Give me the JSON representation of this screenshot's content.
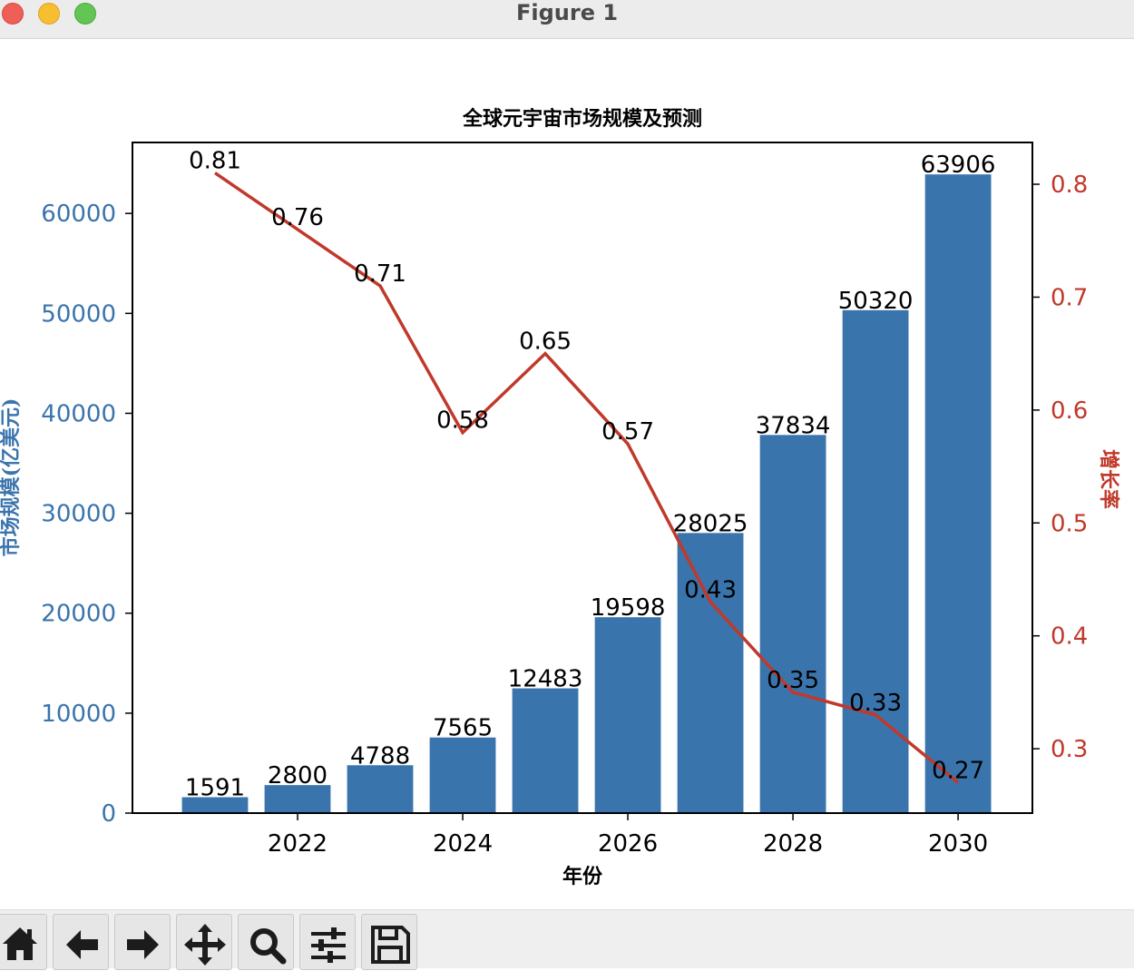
{
  "window": {
    "title": "Figure 1"
  },
  "chart_data": {
    "type": "bar+line",
    "title": "全球元宇宙市场规模及预测",
    "xlabel": "年份",
    "ylabel_left": "市场规模(亿美元)",
    "ylabel_right": "增长率",
    "x": [
      2021,
      2022,
      2023,
      2024,
      2025,
      2026,
      2027,
      2028,
      2029,
      2030
    ],
    "x_ticks": [
      "2022",
      "2024",
      "2026",
      "2028",
      "2030"
    ],
    "xlim": [
      2020.0,
      2030.9
    ],
    "y_left_ticks": [
      "0",
      "10000",
      "20000",
      "30000",
      "40000",
      "50000",
      "60000"
    ],
    "y_left_lim": [
      0,
      67100
    ],
    "y_right_ticks": [
      "0.3",
      "0.4",
      "0.5",
      "0.6",
      "0.7",
      "0.8"
    ],
    "y_right_lim": [
      0.243,
      0.837
    ],
    "series": [
      {
        "type": "bar",
        "axis": "left",
        "color": "#3a74ad",
        "values": [
          1591,
          2800,
          4788,
          7565,
          12483,
          19598,
          28025,
          37834,
          50320,
          63906
        ],
        "labels": [
          "1591",
          "2800",
          "4788",
          "7565",
          "12483",
          "19598",
          "28025",
          "37834",
          "50320",
          "63906"
        ]
      },
      {
        "type": "line",
        "axis": "right",
        "color": "#c0392b",
        "values": [
          0.81,
          0.76,
          0.71,
          0.58,
          0.65,
          0.57,
          0.43,
          0.35,
          0.33,
          0.27
        ],
        "labels": [
          "0.81",
          "0.76",
          "0.71",
          "0.58",
          "0.65",
          "0.57",
          "0.43",
          "0.35",
          "0.33",
          "0.27"
        ]
      }
    ],
    "left_axis_color": "#3a74ad",
    "right_axis_color": "#c0392b",
    "grid": false
  },
  "toolbar": {
    "buttons": [
      {
        "name": "home-button",
        "icon": "home-icon"
      },
      {
        "name": "back-button",
        "icon": "arrow-left-icon"
      },
      {
        "name": "forward-button",
        "icon": "arrow-right-icon"
      },
      {
        "name": "pan-button",
        "icon": "move-icon"
      },
      {
        "name": "zoom-button",
        "icon": "magnifier-icon"
      },
      {
        "name": "configure-subplots-button",
        "icon": "sliders-icon"
      },
      {
        "name": "save-button",
        "icon": "floppy-disk-icon"
      }
    ]
  }
}
